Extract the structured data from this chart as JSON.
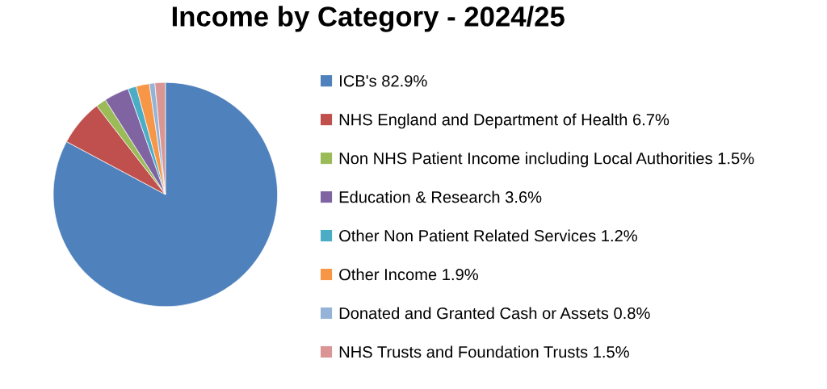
{
  "chart_data": {
    "type": "pie",
    "title": "Income by Category - 2024/25",
    "categories": [
      "ICB's",
      "NHS England and Department of Health",
      "Non NHS Patient Income including Local Authorities",
      "Education & Research",
      "Other Non Patient Related Services",
      "Other Income",
      "Donated and Granted Cash or Assets",
      "NHS Trusts and Foundation Trusts"
    ],
    "values": [
      82.9,
      6.7,
      1.5,
      3.6,
      1.2,
      1.9,
      0.8,
      1.5
    ],
    "value_labels": [
      "82.9%",
      "6.7%",
      "1.5%",
      "3.6%",
      "1.2%",
      "1.9%",
      "0.8%",
      "1.5%"
    ],
    "colors": [
      "#4f81bd",
      "#c0504d",
      "#9bbb59",
      "#8064a2",
      "#4bacc6",
      "#f79646",
      "#95b3d7",
      "#d99694"
    ],
    "legend": "right"
  }
}
